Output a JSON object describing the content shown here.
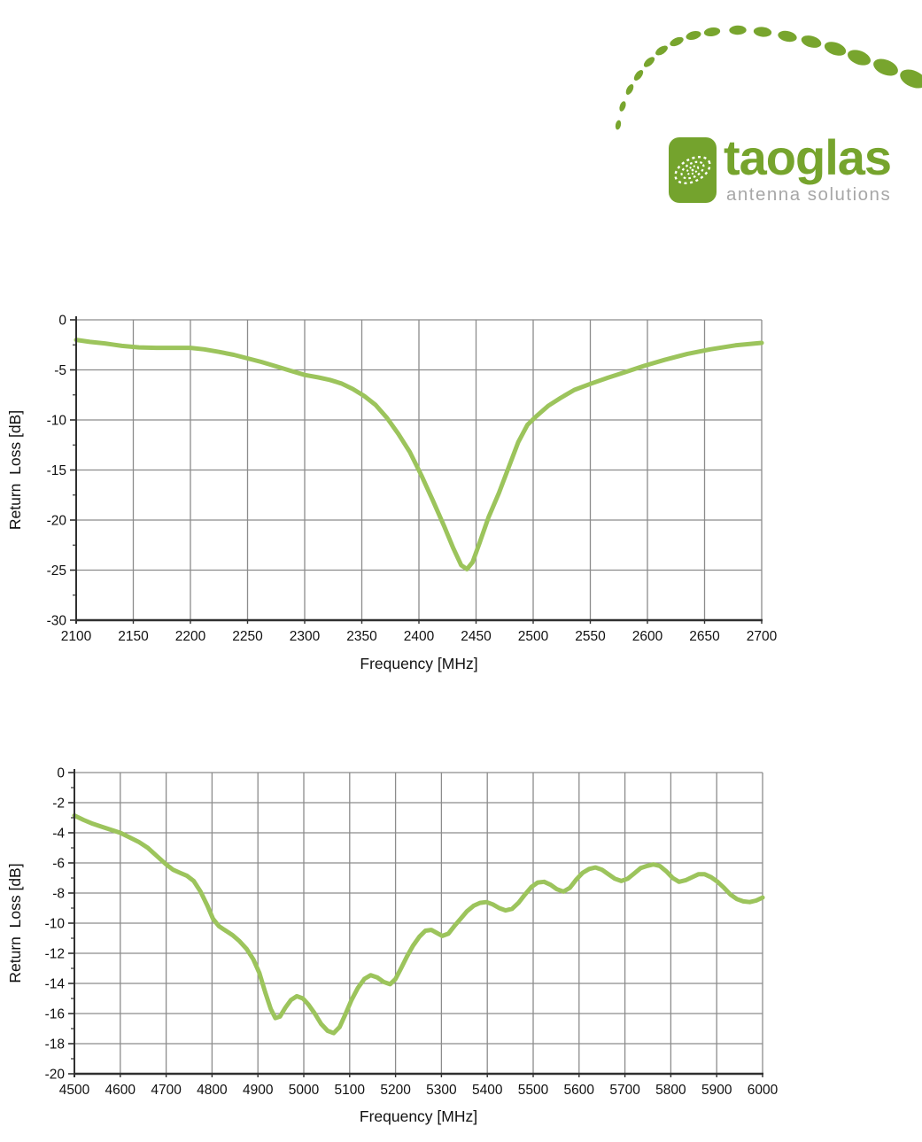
{
  "logo": {
    "brand": "taoglas",
    "tagline": "antenna solutions",
    "brand_color": "#76A42D",
    "tagline_color": "#A7A7A7",
    "dot_color": "#78A52E",
    "mark_fill": "#74A32D"
  },
  "colors": {
    "grid": "#8C8C8C",
    "axis": "#303030",
    "tick_text": "#111111",
    "curve": "#9CC45C"
  },
  "chart_data": [
    {
      "type": "line",
      "title": "",
      "xlabel": "Frequency [MHz]",
      "ylabel": "Return  Loss [dB]",
      "xlim": [
        2100,
        2700
      ],
      "ylim": [
        -30,
        0
      ],
      "x_grid_step": 50,
      "y_grid_step": 5,
      "y_minor_step": 2.5,
      "grid": true,
      "legend": "none",
      "x_tick_labels": [
        2100,
        2150,
        2200,
        2250,
        2300,
        2350,
        2400,
        2450,
        2500,
        2550,
        2600,
        2650,
        2700
      ],
      "y_tick_labels": [
        0,
        -5,
        -10,
        -15,
        -20,
        -25,
        -30
      ],
      "series": [
        {
          "name": "Return Loss",
          "color": "#9CC45C",
          "points": [
            [
              2100,
              -2.0
            ],
            [
              2112,
              -2.2
            ],
            [
              2125,
              -2.35
            ],
            [
              2140,
              -2.6
            ],
            [
              2155,
              -2.75
            ],
            [
              2170,
              -2.8
            ],
            [
              2185,
              -2.8
            ],
            [
              2200,
              -2.8
            ],
            [
              2212,
              -2.95
            ],
            [
              2225,
              -3.2
            ],
            [
              2238,
              -3.5
            ],
            [
              2250,
              -3.85
            ],
            [
              2262,
              -4.2
            ],
            [
              2275,
              -4.65
            ],
            [
              2288,
              -5.1
            ],
            [
              2300,
              -5.5
            ],
            [
              2312,
              -5.75
            ],
            [
              2322,
              -6.0
            ],
            [
              2332,
              -6.35
            ],
            [
              2342,
              -6.9
            ],
            [
              2352,
              -7.6
            ],
            [
              2362,
              -8.5
            ],
            [
              2372,
              -9.8
            ],
            [
              2382,
              -11.4
            ],
            [
              2392,
              -13.2
            ],
            [
              2402,
              -15.5
            ],
            [
              2412,
              -18.0
            ],
            [
              2422,
              -20.6
            ],
            [
              2430,
              -22.8
            ],
            [
              2437,
              -24.5
            ],
            [
              2442,
              -24.9
            ],
            [
              2447,
              -24.2
            ],
            [
              2453,
              -22.3
            ],
            [
              2461,
              -19.7
            ],
            [
              2470,
              -17.3
            ],
            [
              2479,
              -14.6
            ],
            [
              2487,
              -12.2
            ],
            [
              2495,
              -10.5
            ],
            [
              2503,
              -9.6
            ],
            [
              2513,
              -8.6
            ],
            [
              2524,
              -7.8
            ],
            [
              2536,
              -7.0
            ],
            [
              2550,
              -6.4
            ],
            [
              2565,
              -5.8
            ],
            [
              2580,
              -5.25
            ],
            [
              2597,
              -4.6
            ],
            [
              2615,
              -4.0
            ],
            [
              2635,
              -3.4
            ],
            [
              2655,
              -2.95
            ],
            [
              2677,
              -2.55
            ],
            [
              2700,
              -2.3
            ]
          ]
        }
      ]
    },
    {
      "type": "line",
      "title": "",
      "xlabel": "Frequency [MHz]",
      "ylabel": "Return  Loss [dB]",
      "xlim": [
        4500,
        6000
      ],
      "ylim": [
        -20,
        0
      ],
      "x_grid_step": 100,
      "y_grid_step": 2,
      "y_minor_step": 1,
      "grid": true,
      "legend": "none",
      "x_tick_labels": [
        4500,
        4600,
        4700,
        4800,
        4900,
        5000,
        5100,
        5200,
        5300,
        5400,
        5500,
        5600,
        5700,
        5800,
        5900,
        6000
      ],
      "y_tick_labels": [
        0,
        -2,
        -4,
        -6,
        -8,
        -10,
        -12,
        -14,
        -16,
        -18,
        -20
      ],
      "series": [
        {
          "name": "Return Loss",
          "color": "#9CC45C",
          "points": [
            [
              4500,
              -2.85
            ],
            [
              4520,
              -3.15
            ],
            [
              4540,
              -3.4
            ],
            [
              4560,
              -3.6
            ],
            [
              4580,
              -3.8
            ],
            [
              4600,
              -4.0
            ],
            [
              4620,
              -4.3
            ],
            [
              4640,
              -4.6
            ],
            [
              4660,
              -5.0
            ],
            [
              4680,
              -5.55
            ],
            [
              4700,
              -6.1
            ],
            [
              4715,
              -6.45
            ],
            [
              4730,
              -6.65
            ],
            [
              4745,
              -6.85
            ],
            [
              4760,
              -7.2
            ],
            [
              4775,
              -7.9
            ],
            [
              4790,
              -8.85
            ],
            [
              4802,
              -9.7
            ],
            [
              4815,
              -10.2
            ],
            [
              4830,
              -10.5
            ],
            [
              4845,
              -10.8
            ],
            [
              4860,
              -11.2
            ],
            [
              4875,
              -11.7
            ],
            [
              4890,
              -12.4
            ],
            [
              4903,
              -13.3
            ],
            [
              4916,
              -14.6
            ],
            [
              4928,
              -15.7
            ],
            [
              4938,
              -16.3
            ],
            [
              4948,
              -16.2
            ],
            [
              4960,
              -15.6
            ],
            [
              4972,
              -15.1
            ],
            [
              4985,
              -14.85
            ],
            [
              4998,
              -15.0
            ],
            [
              5010,
              -15.4
            ],
            [
              5024,
              -16.0
            ],
            [
              5038,
              -16.7
            ],
            [
              5052,
              -17.15
            ],
            [
              5065,
              -17.3
            ],
            [
              5078,
              -16.9
            ],
            [
              5090,
              -16.1
            ],
            [
              5104,
              -15.1
            ],
            [
              5118,
              -14.3
            ],
            [
              5132,
              -13.7
            ],
            [
              5146,
              -13.45
            ],
            [
              5160,
              -13.6
            ],
            [
              5174,
              -13.9
            ],
            [
              5188,
              -14.05
            ],
            [
              5200,
              -13.7
            ],
            [
              5212,
              -13.0
            ],
            [
              5225,
              -12.2
            ],
            [
              5238,
              -11.5
            ],
            [
              5252,
              -10.9
            ],
            [
              5265,
              -10.5
            ],
            [
              5278,
              -10.45
            ],
            [
              5290,
              -10.65
            ],
            [
              5302,
              -10.85
            ],
            [
              5315,
              -10.7
            ],
            [
              5328,
              -10.2
            ],
            [
              5342,
              -9.7
            ],
            [
              5356,
              -9.2
            ],
            [
              5370,
              -8.85
            ],
            [
              5384,
              -8.65
            ],
            [
              5398,
              -8.6
            ],
            [
              5412,
              -8.75
            ],
            [
              5426,
              -9.0
            ],
            [
              5440,
              -9.15
            ],
            [
              5454,
              -9.05
            ],
            [
              5468,
              -8.65
            ],
            [
              5482,
              -8.1
            ],
            [
              5496,
              -7.6
            ],
            [
              5510,
              -7.3
            ],
            [
              5524,
              -7.25
            ],
            [
              5538,
              -7.45
            ],
            [
              5552,
              -7.75
            ],
            [
              5566,
              -7.9
            ],
            [
              5580,
              -7.65
            ],
            [
              5594,
              -7.1
            ],
            [
              5608,
              -6.65
            ],
            [
              5622,
              -6.4
            ],
            [
              5636,
              -6.3
            ],
            [
              5650,
              -6.45
            ],
            [
              5664,
              -6.75
            ],
            [
              5678,
              -7.05
            ],
            [
              5692,
              -7.2
            ],
            [
              5706,
              -7.05
            ],
            [
              5720,
              -6.7
            ],
            [
              5734,
              -6.35
            ],
            [
              5748,
              -6.2
            ],
            [
              5762,
              -6.1
            ],
            [
              5776,
              -6.2
            ],
            [
              5790,
              -6.55
            ],
            [
              5804,
              -7.0
            ],
            [
              5818,
              -7.25
            ],
            [
              5832,
              -7.15
            ],
            [
              5846,
              -6.95
            ],
            [
              5860,
              -6.75
            ],
            [
              5874,
              -6.75
            ],
            [
              5888,
              -6.95
            ],
            [
              5902,
              -7.25
            ],
            [
              5916,
              -7.65
            ],
            [
              5930,
              -8.1
            ],
            [
              5944,
              -8.4
            ],
            [
              5958,
              -8.55
            ],
            [
              5972,
              -8.6
            ],
            [
              5986,
              -8.5
            ],
            [
              6000,
              -8.3
            ]
          ]
        }
      ]
    }
  ]
}
